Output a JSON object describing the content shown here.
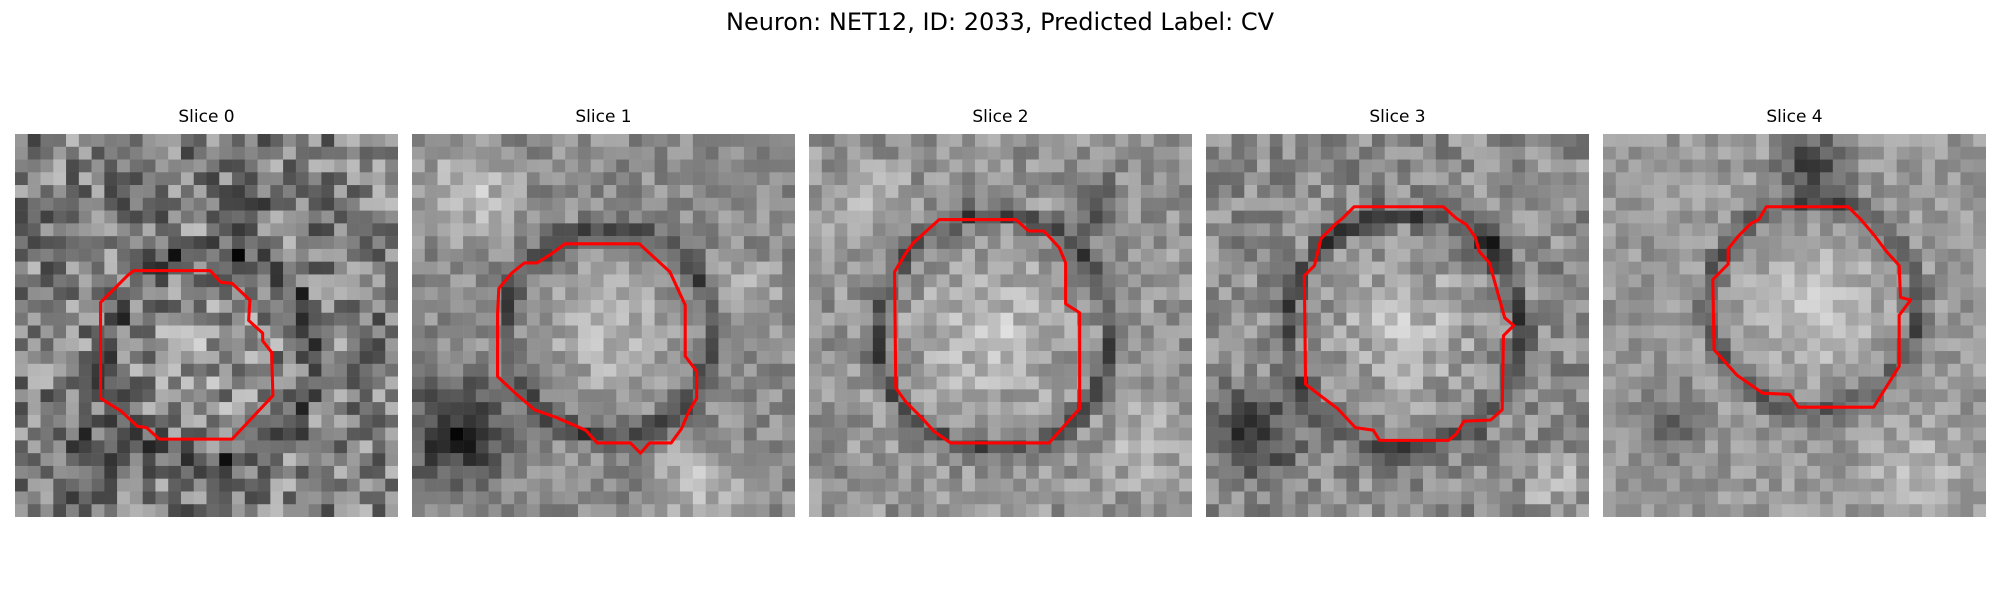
{
  "figure": {
    "suptitle": "Neuron: NET12, ID: 2033, Predicted Label: CV"
  },
  "panels": [
    {
      "title": "Slice 0"
    },
    {
      "title": "Slice 1"
    },
    {
      "title": "Slice 2"
    },
    {
      "title": "Slice 3"
    },
    {
      "title": "Slice 4"
    }
  ],
  "colors": {
    "contour": "#ff0000",
    "colormap": "gray"
  }
}
